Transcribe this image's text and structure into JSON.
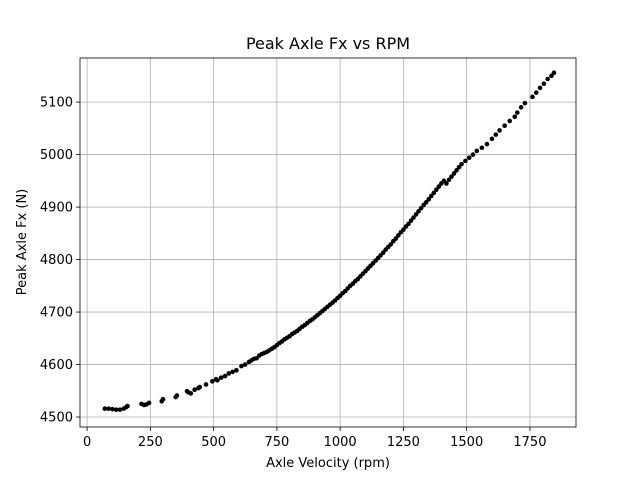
{
  "chart_data": {
    "type": "scatter",
    "title": "Peak Axle Fx vs RPM",
    "xlabel": "Axle Velocity (rpm)",
    "ylabel": "Peak Axle Fx (N)",
    "xlim": [
      -28,
      1932
    ],
    "ylim": [
      4481,
      5184
    ],
    "xticks": [
      0,
      250,
      500,
      750,
      1000,
      1250,
      1500,
      1750
    ],
    "yticks": [
      4500,
      4600,
      4700,
      4800,
      4900,
      5000,
      5100
    ],
    "grid": true,
    "marker_color": "#000000",
    "points": [
      [
        70,
        4516
      ],
      [
        85,
        4516
      ],
      [
        100,
        4515
      ],
      [
        115,
        4514
      ],
      [
        130,
        4514
      ],
      [
        145,
        4516
      ],
      [
        155,
        4519
      ],
      [
        160,
        4521
      ],
      [
        215,
        4525
      ],
      [
        225,
        4523
      ],
      [
        235,
        4524
      ],
      [
        245,
        4527
      ],
      [
        295,
        4530
      ],
      [
        300,
        4534
      ],
      [
        350,
        4538
      ],
      [
        355,
        4541
      ],
      [
        395,
        4549
      ],
      [
        400,
        4547
      ],
      [
        410,
        4545
      ],
      [
        425,
        4552
      ],
      [
        440,
        4555
      ],
      [
        445,
        4557
      ],
      [
        470,
        4562
      ],
      [
        495,
        4568
      ],
      [
        510,
        4572
      ],
      [
        515,
        4570
      ],
      [
        530,
        4575
      ],
      [
        545,
        4578
      ],
      [
        560,
        4583
      ],
      [
        575,
        4586
      ],
      [
        590,
        4589
      ],
      [
        610,
        4597
      ],
      [
        625,
        4600
      ],
      [
        640,
        4605
      ],
      [
        650,
        4608
      ],
      [
        660,
        4611
      ],
      [
        670,
        4612
      ],
      [
        680,
        4617
      ],
      [
        690,
        4620
      ],
      [
        700,
        4622
      ],
      [
        710,
        4624
      ],
      [
        720,
        4627
      ],
      [
        730,
        4630
      ],
      [
        740,
        4633
      ],
      [
        750,
        4637
      ],
      [
        760,
        4641
      ],
      [
        770,
        4644
      ],
      [
        780,
        4648
      ],
      [
        790,
        4651
      ],
      [
        800,
        4654
      ],
      [
        810,
        4658
      ],
      [
        820,
        4661
      ],
      [
        830,
        4664
      ],
      [
        840,
        4668
      ],
      [
        850,
        4672
      ],
      [
        860,
        4675
      ],
      [
        870,
        4679
      ],
      [
        880,
        4683
      ],
      [
        890,
        4686
      ],
      [
        900,
        4690
      ],
      [
        910,
        4694
      ],
      [
        920,
        4698
      ],
      [
        930,
        4702
      ],
      [
        940,
        4706
      ],
      [
        950,
        4710
      ],
      [
        960,
        4714
      ],
      [
        970,
        4718
      ],
      [
        980,
        4722
      ],
      [
        990,
        4727
      ],
      [
        1000,
        4731
      ],
      [
        1010,
        4736
      ],
      [
        1020,
        4740
      ],
      [
        1030,
        4745
      ],
      [
        1040,
        4750
      ],
      [
        1050,
        4754
      ],
      [
        1060,
        4759
      ],
      [
        1070,
        4763
      ],
      [
        1080,
        4768
      ],
      [
        1090,
        4773
      ],
      [
        1100,
        4778
      ],
      [
        1110,
        4783
      ],
      [
        1120,
        4788
      ],
      [
        1130,
        4793
      ],
      [
        1140,
        4798
      ],
      [
        1150,
        4803
      ],
      [
        1160,
        4808
      ],
      [
        1170,
        4813
      ],
      [
        1180,
        4819
      ],
      [
        1190,
        4824
      ],
      [
        1200,
        4829
      ],
      [
        1210,
        4835
      ],
      [
        1220,
        4840
      ],
      [
        1230,
        4846
      ],
      [
        1240,
        4852
      ],
      [
        1250,
        4857
      ],
      [
        1260,
        4863
      ],
      [
        1270,
        4868
      ],
      [
        1280,
        4874
      ],
      [
        1290,
        4880
      ],
      [
        1300,
        4886
      ],
      [
        1310,
        4892
      ],
      [
        1320,
        4898
      ],
      [
        1330,
        4904
      ],
      [
        1340,
        4909
      ],
      [
        1350,
        4915
      ],
      [
        1360,
        4921
      ],
      [
        1370,
        4927
      ],
      [
        1380,
        4933
      ],
      [
        1390,
        4939
      ],
      [
        1400,
        4945
      ],
      [
        1410,
        4950
      ],
      [
        1420,
        4945
      ],
      [
        1430,
        4952
      ],
      [
        1440,
        4958
      ],
      [
        1450,
        4964
      ],
      [
        1460,
        4970
      ],
      [
        1470,
        4976
      ],
      [
        1480,
        4982
      ],
      [
        1495,
        4988
      ],
      [
        1510,
        4994
      ],
      [
        1525,
        5000
      ],
      [
        1540,
        5007
      ],
      [
        1560,
        5013
      ],
      [
        1580,
        5020
      ],
      [
        1600,
        5030
      ],
      [
        1615,
        5038
      ],
      [
        1630,
        5046
      ],
      [
        1650,
        5055
      ],
      [
        1670,
        5064
      ],
      [
        1690,
        5072
      ],
      [
        1700,
        5080
      ],
      [
        1715,
        5090
      ],
      [
        1730,
        5098
      ],
      [
        1760,
        5110
      ],
      [
        1775,
        5118
      ],
      [
        1790,
        5127
      ],
      [
        1805,
        5135
      ],
      [
        1820,
        5144
      ],
      [
        1835,
        5150
      ],
      [
        1845,
        5156
      ]
    ]
  }
}
